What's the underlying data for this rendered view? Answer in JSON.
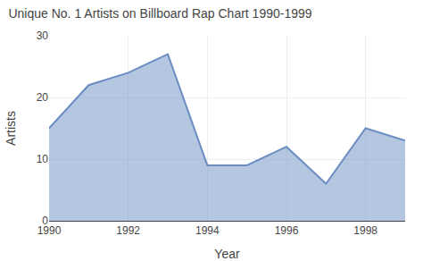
{
  "chart_data": {
    "type": "area",
    "title": "Unique No. 1 Artists on Billboard Rap Chart 1990-1999",
    "xlabel": "Year",
    "ylabel": "Artists",
    "x": [
      1990,
      1991,
      1992,
      1993,
      1994,
      1995,
      1996,
      1997,
      1998,
      1999
    ],
    "values": [
      15,
      22,
      24,
      27,
      9,
      9,
      12,
      6,
      15,
      13
    ],
    "color": "#6b8dc2",
    "xlim": [
      1990,
      1999
    ],
    "ylim": [
      0,
      30
    ],
    "xticks": [
      1990,
      1992,
      1994,
      1996,
      1998
    ],
    "yticks": [
      0,
      10,
      20,
      30
    ],
    "grid": true
  }
}
